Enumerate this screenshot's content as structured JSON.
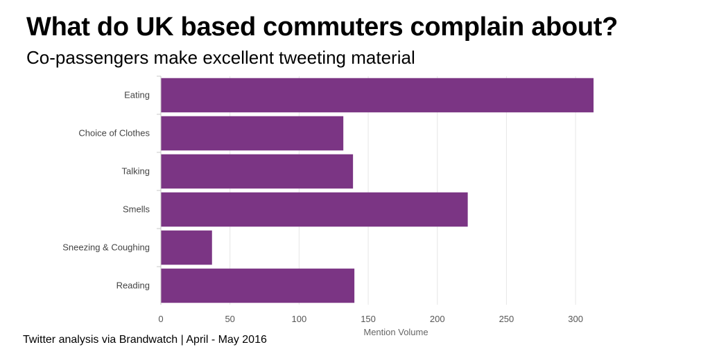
{
  "header": {
    "title": "What do UK based commuters complain about?",
    "subtitle": "Co-passengers make excellent tweeting material"
  },
  "footer": {
    "source": "Twitter analysis via Brandwatch | April - May 2016"
  },
  "colors": {
    "bar": "#7b3584",
    "grid": "#e6e6e6",
    "axis": "#c8c8c8"
  },
  "chart_data": {
    "type": "bar",
    "orientation": "horizontal",
    "categories": [
      "Eating",
      "Choice of Clothes",
      "Talking",
      "Smells",
      "Sneezing & Coughing",
      "Reading"
    ],
    "values": [
      313,
      132,
      139,
      222,
      37,
      140
    ],
    "xlabel": "Mention Volume",
    "xlim": [
      0,
      320
    ],
    "xticks": [
      0,
      50,
      100,
      150,
      200,
      250,
      300
    ],
    "grid": true
  }
}
